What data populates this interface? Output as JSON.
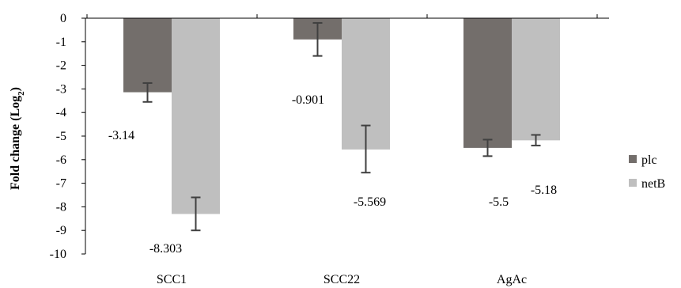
{
  "chart_data": {
    "type": "bar",
    "title": "",
    "xlabel": "",
    "ylabel": "Fold change (Log",
    "ylabel_subscript": "2",
    "ylabel_suffix": ")",
    "ylim": [
      -10,
      0
    ],
    "yticks": [
      0,
      -1,
      -2,
      -3,
      -4,
      -5,
      -6,
      -7,
      -8,
      -9,
      -10
    ],
    "categories": [
      "SCC1",
      "SCC22",
      "AgAc"
    ],
    "series": [
      {
        "name": "plc",
        "color": "#736e6b",
        "values": [
          -3.14,
          -0.901,
          -5.5
        ],
        "labels": [
          "-3.14",
          "-0.901",
          "-5.5"
        ],
        "error_low": [
          -3.55,
          -1.6,
          -5.85
        ],
        "error_high": [
          -2.75,
          -0.2,
          -5.15
        ]
      },
      {
        "name": "netB",
        "color": "#bfbfbf",
        "values": [
          -8.303,
          -5.569,
          -5.18
        ],
        "labels": [
          "-8.303",
          "-5.569",
          "-5.18"
        ],
        "error_low": [
          -9.0,
          -6.55,
          -5.4
        ],
        "error_high": [
          -7.6,
          -4.55,
          -4.95
        ]
      }
    ],
    "grid": false,
    "legend_position": "right"
  }
}
